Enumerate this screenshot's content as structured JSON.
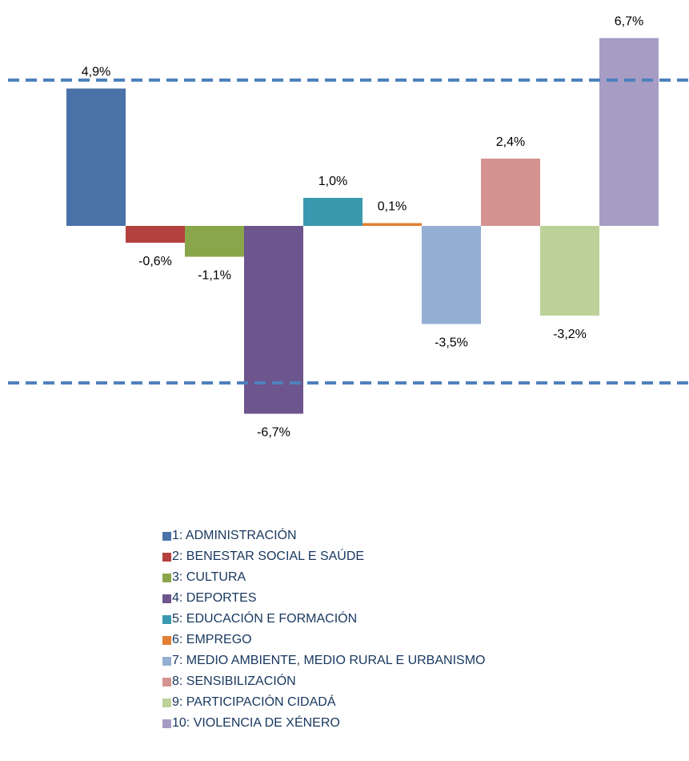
{
  "chart_data": {
    "type": "bar",
    "categories": [
      "1: ADMINISTRACIÓN",
      "2: BENESTAR SOCIAL  E SAÚDE",
      "3: CULTURA",
      "4: DEPORTES",
      "5: EDUCACIÓN E FORMACIÓN",
      "6: EMPREGO",
      "7: MEDIO AMBIENTE, MEDIO RURAL E URBANISMO",
      "8: SENSIBILIZACIÓN",
      "9: PARTICIPACIÓN CIDADÁ",
      "10: VIOLENCIA DE XÉNERO"
    ],
    "values": [
      4.9,
      -0.6,
      -1.1,
      -6.7,
      1.0,
      0.1,
      -3.5,
      2.4,
      -3.2,
      6.7
    ],
    "value_labels": [
      "4,9%",
      "-0,6%",
      "-1,1%",
      "-6,7%",
      "1,0%",
      "0,1%",
      "-3,5%",
      "2,4%",
      "-3,2%",
      "6,7%"
    ],
    "colors": [
      "#4a72a8",
      "#b5413e",
      "#8aa64a",
      "#6d558d",
      "#3a99af",
      "#e37f33",
      "#95aed4",
      "#d49290",
      "#bcd198",
      "#a69cc4"
    ],
    "reference_lines": [
      5.2,
      -5.6
    ],
    "reference_line_color": "#4f81bd",
    "ylim": [
      -8,
      8
    ]
  }
}
